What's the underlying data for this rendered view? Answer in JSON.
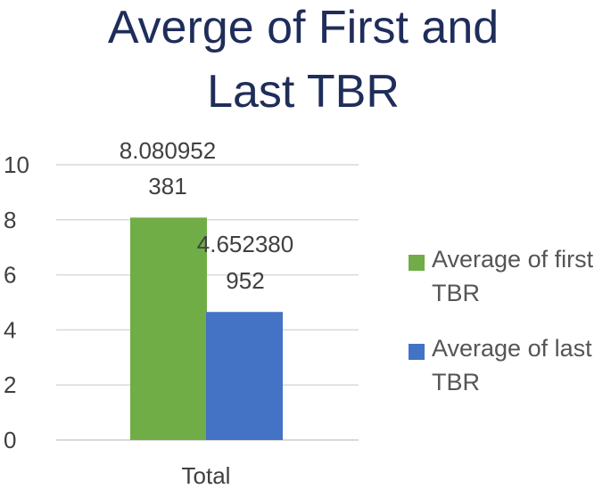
{
  "colors": {
    "first": "#70ad47",
    "last": "#4472c4",
    "grid": "#d9d9d9",
    "title": "#1f2d5a"
  },
  "chart_data": {
    "type": "bar",
    "title_line1": "Averge of First and",
    "title_line2": "Last TBR",
    "categories": [
      "Total"
    ],
    "series": [
      {
        "name": "Average of first TBR",
        "values": [
          8.080952381
        ],
        "label_line1": "8.080952",
        "label_line2": "381"
      },
      {
        "name": "Average of last TBR",
        "values": [
          4.652380952
        ],
        "label_line1": "4.652380",
        "label_line2": "952"
      }
    ],
    "ylim": [
      0,
      10
    ],
    "yticks": [
      "0",
      "2",
      "4",
      "6",
      "8",
      "10"
    ],
    "grid": true,
    "legend_position": "right"
  },
  "legend": {
    "first_line1": "Average of first",
    "first_line2": "TBR",
    "last_line1": "Average of last",
    "last_line2": "TBR"
  }
}
